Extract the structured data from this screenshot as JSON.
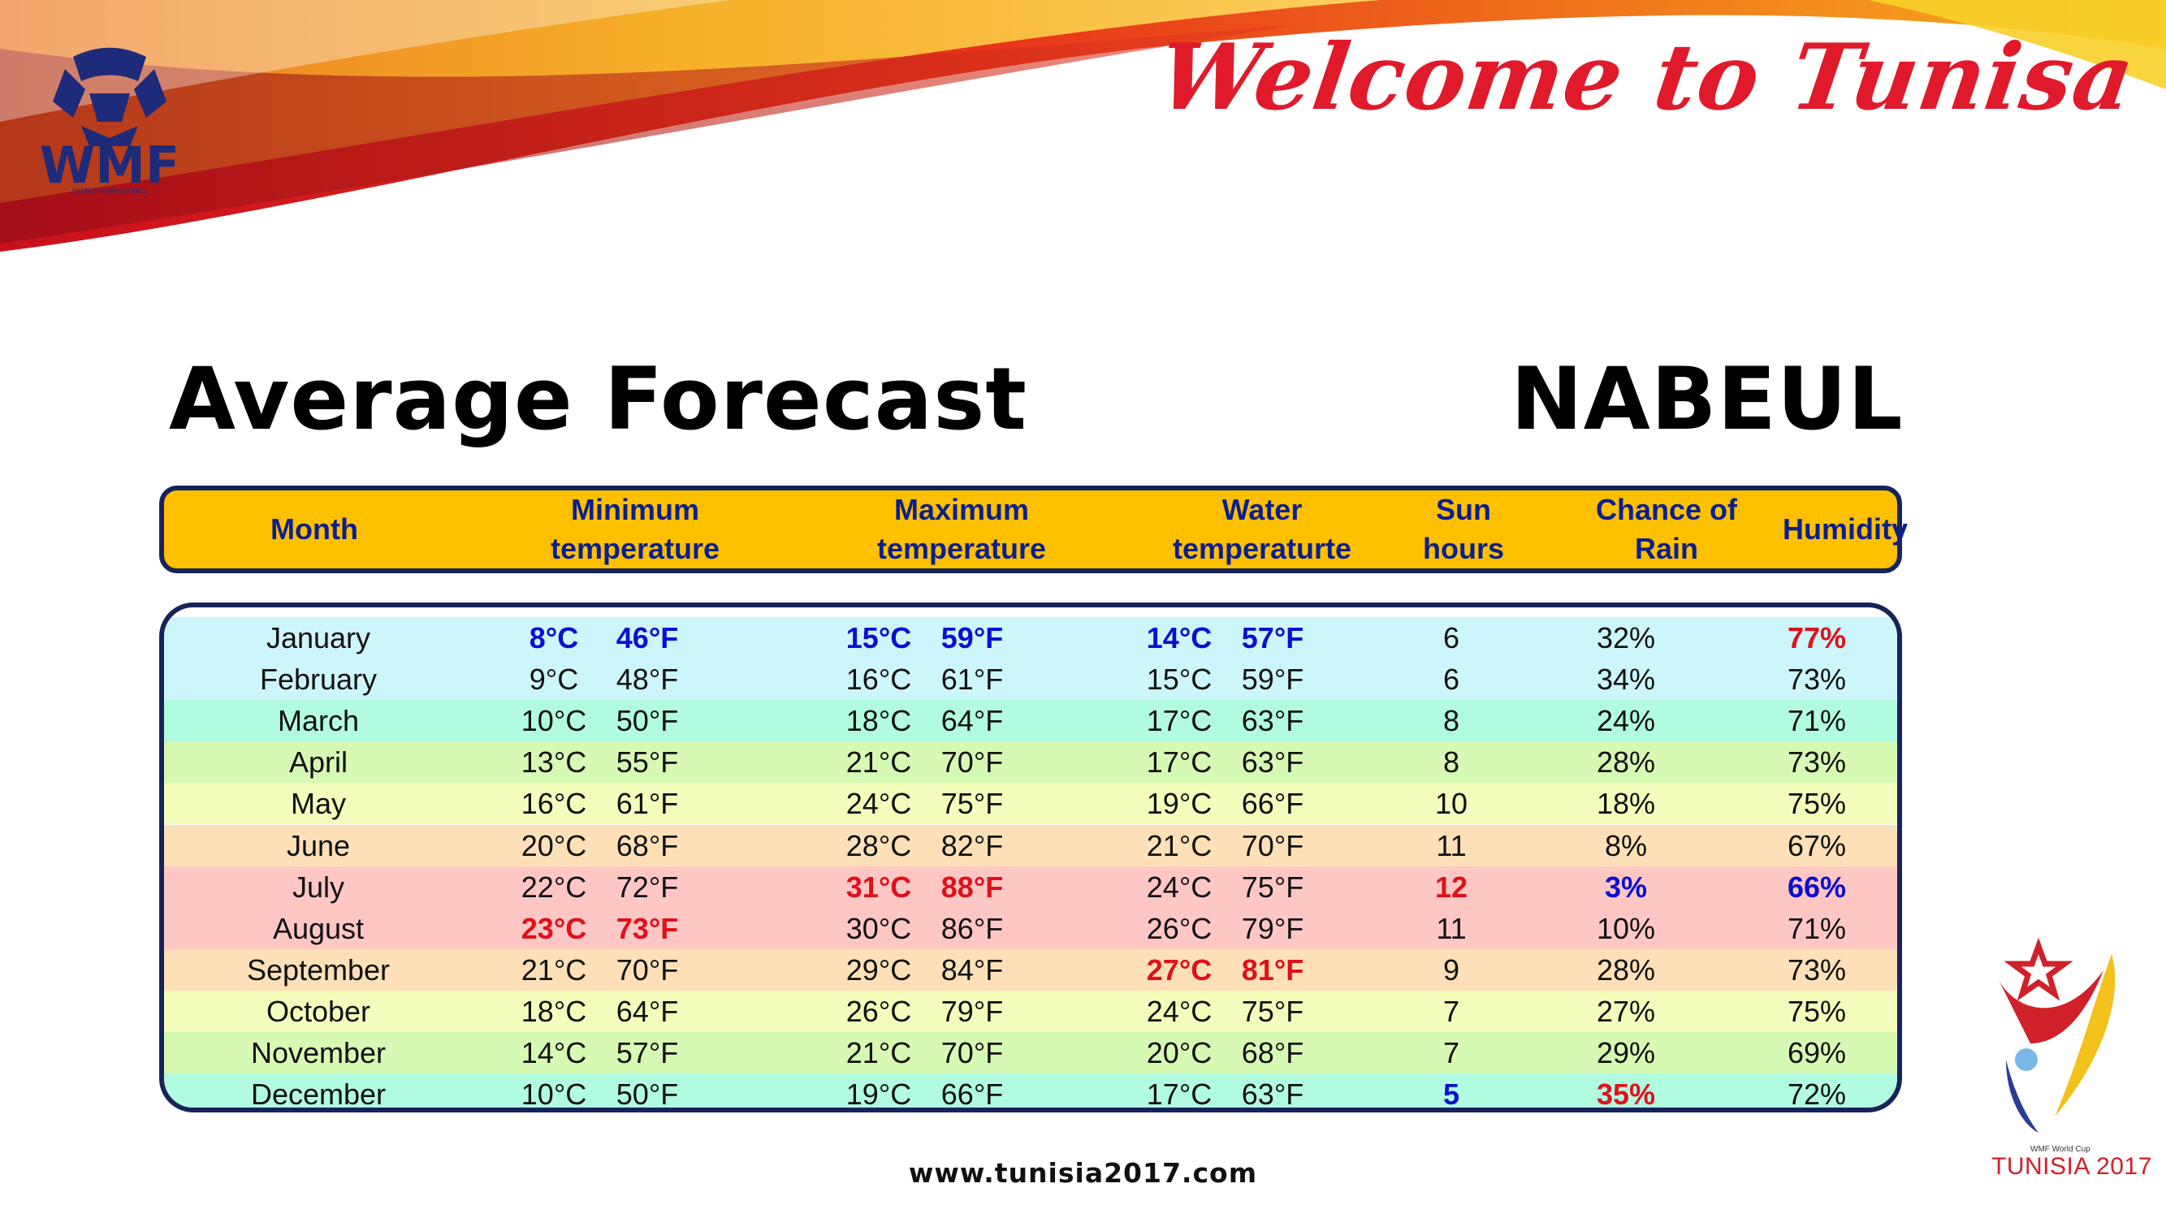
{
  "header": {
    "welcome_text": "Welcome to Tunisa",
    "wmf_logo_text": "WMF",
    "wmf_logo_subtext": "WORLD MINIFOOTBALL"
  },
  "title": "Average Forecast",
  "city": "NABEUL",
  "table": {
    "columns": [
      "Month",
      "Minimum\ntemperature",
      "Maximum\ntemperature",
      "Water\ntemperaturte",
      "Sun\nhours",
      "Chance of\nRain",
      "Humidity"
    ],
    "rows": [
      {
        "month": "January",
        "min_c": "8°C",
        "min_f": "46°F",
        "max_c": "15°C",
        "max_f": "59°F",
        "water_c": "14°C",
        "water_f": "57°F",
        "sun": "6",
        "rain": "32%",
        "humidity": "77%",
        "bg": "#cdf5fc"
      },
      {
        "month": "February",
        "min_c": "9°C",
        "min_f": "48°F",
        "max_c": "16°C",
        "max_f": "61°F",
        "water_c": "15°C",
        "water_f": "59°F",
        "sun": "6",
        "rain": "34%",
        "humidity": "73%",
        "bg": "#cdf5fc"
      },
      {
        "month": "March",
        "min_c": "10°C",
        "min_f": "50°F",
        "max_c": "18°C",
        "max_f": "64°F",
        "water_c": "17°C",
        "water_f": "63°F",
        "sun": "8",
        "rain": "24%",
        "humidity": "71%",
        "bg": "#b1fbe1"
      },
      {
        "month": "April",
        "min_c": "13°C",
        "min_f": "55°F",
        "max_c": "21°C",
        "max_f": "70°F",
        "water_c": "17°C",
        "water_f": "63°F",
        "sun": "8",
        "rain": "28%",
        "humidity": "73%",
        "bg": "#d6f9b4"
      },
      {
        "month": "May",
        "min_c": "16°C",
        "min_f": "61°F",
        "max_c": "24°C",
        "max_f": "75°F",
        "water_c": "19°C",
        "water_f": "66°F",
        "sun": "10",
        "rain": "18%",
        "humidity": "75%",
        "bg": "#f4fcbc"
      },
      {
        "month": "June",
        "min_c": "20°C",
        "min_f": "68°F",
        "max_c": "28°C",
        "max_f": "82°F",
        "water_c": "21°C",
        "water_f": "70°F",
        "sun": "11",
        "rain": "8%",
        "humidity": "67%",
        "bg": "#fde0b7"
      },
      {
        "month": "July",
        "min_c": "22°C",
        "min_f": "72°F",
        "max_c": "31°C",
        "max_f": "88°F",
        "water_c": "24°C",
        "water_f": "75°F",
        "sun": "12",
        "rain": "3%",
        "humidity": "66%",
        "bg": "#ffc7c4"
      },
      {
        "month": "August",
        "min_c": "23°C",
        "min_f": "73°F",
        "max_c": "30°C",
        "max_f": "86°F",
        "water_c": "26°C",
        "water_f": "79°F",
        "sun": "11",
        "rain": "10%",
        "humidity": "71%",
        "bg": "#ffc7c4"
      },
      {
        "month": "September",
        "min_c": "21°C",
        "min_f": "70°F",
        "max_c": "29°C",
        "max_f": "84°F",
        "water_c": "27°C",
        "water_f": "81°F",
        "sun": "9",
        "rain": "28%",
        "humidity": "73%",
        "bg": "#fde0b7"
      },
      {
        "month": "October",
        "min_c": "18°C",
        "min_f": "64°F",
        "max_c": "26°C",
        "max_f": "79°F",
        "water_c": "24°C",
        "water_f": "75°F",
        "sun": "7",
        "rain": "27%",
        "humidity": "75%",
        "bg": "#f4fcbc"
      },
      {
        "month": "November",
        "min_c": "14°C",
        "min_f": "57°F",
        "max_c": "21°C",
        "max_f": "70°F",
        "water_c": "20°C",
        "water_f": "68°F",
        "sun": "7",
        "rain": "29%",
        "humidity": "69%",
        "bg": "#d6f9b4"
      },
      {
        "month": "December",
        "min_c": "10°C",
        "min_f": "50°F",
        "max_c": "19°C",
        "max_f": "66°F",
        "water_c": "17°C",
        "water_f": "63°F",
        "sun": "5",
        "rain": "35%",
        "humidity": "72%",
        "bg": "#b1fbe1"
      }
    ],
    "highlights": [
      {
        "row": 0,
        "field": "min_c",
        "color": "blue"
      },
      {
        "row": 0,
        "field": "min_f",
        "color": "blue"
      },
      {
        "row": 0,
        "field": "max_c",
        "color": "blue"
      },
      {
        "row": 0,
        "field": "max_f",
        "color": "blue"
      },
      {
        "row": 0,
        "field": "water_c",
        "color": "blue"
      },
      {
        "row": 0,
        "field": "water_f",
        "color": "blue"
      },
      {
        "row": 0,
        "field": "humidity",
        "color": "red"
      },
      {
        "row": 6,
        "field": "max_c",
        "color": "red"
      },
      {
        "row": 6,
        "field": "max_f",
        "color": "red"
      },
      {
        "row": 6,
        "field": "sun",
        "color": "red"
      },
      {
        "row": 6,
        "field": "rain",
        "color": "blue"
      },
      {
        "row": 6,
        "field": "humidity",
        "color": "blue"
      },
      {
        "row": 7,
        "field": "min_c",
        "color": "red"
      },
      {
        "row": 7,
        "field": "min_f",
        "color": "red"
      },
      {
        "row": 8,
        "field": "water_c",
        "color": "red"
      },
      {
        "row": 8,
        "field": "water_f",
        "color": "red"
      },
      {
        "row": 11,
        "field": "sun",
        "color": "blue"
      },
      {
        "row": 11,
        "field": "rain",
        "color": "red"
      }
    ]
  },
  "footer": {
    "website": "www.tunisia2017.com",
    "cup_small": "WMF World Cup",
    "cup_name": "TUNISIA 2017"
  },
  "colors": {
    "header_bg": "#ffc000",
    "border": "#16245a",
    "header_text": "#0b1f8f",
    "highlight_blue": "#0a0fd0",
    "highlight_red": "#e0101a",
    "welcome_red": "#e01a2b"
  }
}
